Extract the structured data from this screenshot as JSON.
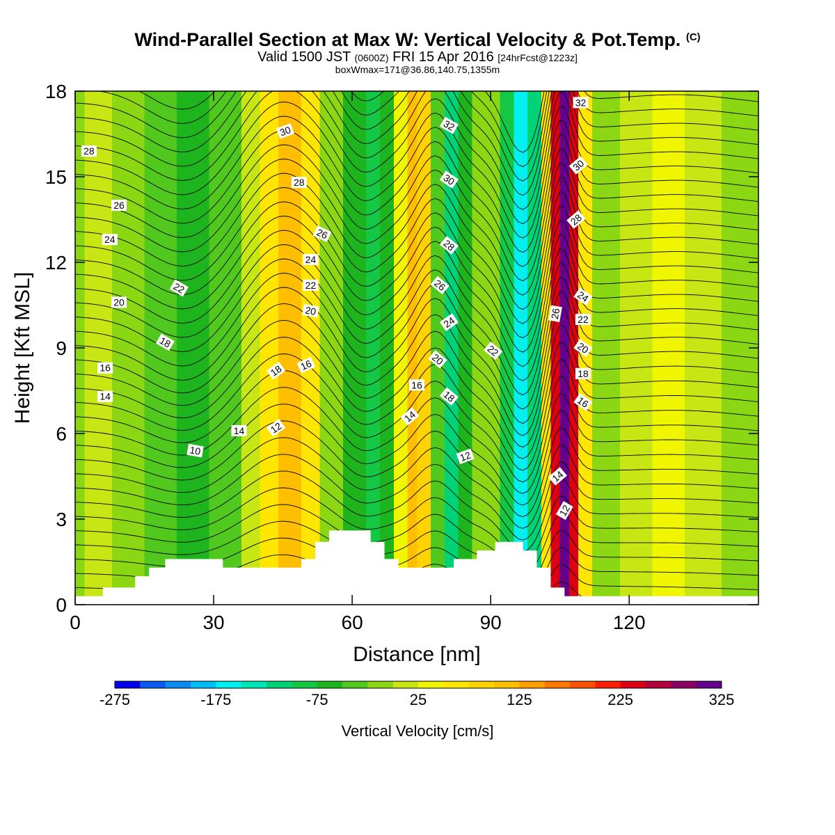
{
  "header": {
    "title": "Wind-Parallel Section at Max W: Vertical Velocity & Pot.Temp.",
    "title_mark": "(C)",
    "subtitle_a": "Valid 1500 JST",
    "subtitle_b": "(0600Z)",
    "subtitle_c": "FRI 15 Apr 2016",
    "subtitle_d": "[24hrFcst@1223z]",
    "subtitle2": "boxWmax=171@36.86,140.75,1355m"
  },
  "chart_data": {
    "type": "heatmap",
    "xlabel": "Distance [nm]",
    "ylabel": "Height [Kft MSL]",
    "xlim": [
      0,
      148
    ],
    "ylim": [
      0,
      18
    ],
    "x_ticks": [
      "0",
      "30",
      "60",
      "90",
      "120"
    ],
    "y_ticks": [
      "0",
      "3",
      "6",
      "9",
      "12",
      "15",
      "18"
    ],
    "colorbar": {
      "label": "Vertical Velocity [cm/s]",
      "tick_labels": [
        "-275",
        "-175",
        "-75",
        "25",
        "125",
        "225",
        "325"
      ],
      "min": -275,
      "max": 325,
      "step": 25,
      "colors": [
        "#0000ee",
        "#0a5af5",
        "#0a8cf5",
        "#00bef5",
        "#00f0f0",
        "#00e6b4",
        "#00d278",
        "#14c846",
        "#1eb41e",
        "#50c81e",
        "#8cd714",
        "#c8e614",
        "#f0f500",
        "#ffe600",
        "#ffd200",
        "#ffbe00",
        "#ffa000",
        "#ff7800",
        "#ff5000",
        "#ff1e00",
        "#dc0014",
        "#b4003c",
        "#8c0064",
        "#64008c"
      ]
    },
    "velocity_bands": [
      {
        "x": 0,
        "w": -20
      },
      {
        "x": 2,
        "w": 10
      },
      {
        "x": 8,
        "w": -20
      },
      {
        "x": 15,
        "w": -40
      },
      {
        "x": 22,
        "w": -70
      },
      {
        "x": 29,
        "w": -40
      },
      {
        "x": 36,
        "w": 20
      },
      {
        "x": 40,
        "w": 70
      },
      {
        "x": 44,
        "w": 110
      },
      {
        "x": 49,
        "w": 60
      },
      {
        "x": 53,
        "w": -20
      },
      {
        "x": 58,
        "w": -60
      },
      {
        "x": 63,
        "w": -100
      },
      {
        "x": 66,
        "w": -60
      },
      {
        "x": 69,
        "w": 40
      },
      {
        "x": 72,
        "w": 120
      },
      {
        "x": 74,
        "w": 90
      },
      {
        "x": 77,
        "w": -40
      },
      {
        "x": 80,
        "w": -120
      },
      {
        "x": 83,
        "w": -70
      },
      {
        "x": 86,
        "w": -20
      },
      {
        "x": 89,
        "w": -10
      },
      {
        "x": 92,
        "w": -80
      },
      {
        "x": 95,
        "w": -175
      },
      {
        "x": 98,
        "w": -110
      },
      {
        "x": 101,
        "w": 60
      },
      {
        "x": 103,
        "w": 230
      },
      {
        "x": 105,
        "w": 305
      },
      {
        "x": 107,
        "w": 225
      },
      {
        "x": 109,
        "w": 60
      },
      {
        "x": 112,
        "w": -10
      },
      {
        "x": 118,
        "w": 0
      },
      {
        "x": 125,
        "w": 25
      },
      {
        "x": 132,
        "w": 10
      },
      {
        "x": 140,
        "w": -20
      },
      {
        "x": 148,
        "w": -25
      }
    ],
    "terrain": [
      {
        "x": 0,
        "h": 0.3
      },
      {
        "x": 6,
        "h": 0.3
      },
      {
        "x": 6,
        "h": 0.6
      },
      {
        "x": 13,
        "h": 0.6
      },
      {
        "x": 13,
        "h": 1.0
      },
      {
        "x": 16,
        "h": 1.0
      },
      {
        "x": 16,
        "h": 1.3
      },
      {
        "x": 19.5,
        "h": 1.3
      },
      {
        "x": 19.5,
        "h": 1.6
      },
      {
        "x": 32,
        "h": 1.6
      },
      {
        "x": 32,
        "h": 1.3
      },
      {
        "x": 49,
        "h": 1.3
      },
      {
        "x": 49,
        "h": 1.6
      },
      {
        "x": 52,
        "h": 1.6
      },
      {
        "x": 52,
        "h": 2.2
      },
      {
        "x": 55,
        "h": 2.2
      },
      {
        "x": 55,
        "h": 2.6
      },
      {
        "x": 64,
        "h": 2.6
      },
      {
        "x": 64,
        "h": 2.2
      },
      {
        "x": 67,
        "h": 2.2
      },
      {
        "x": 67,
        "h": 1.6
      },
      {
        "x": 70,
        "h": 1.6
      },
      {
        "x": 70,
        "h": 1.3
      },
      {
        "x": 82,
        "h": 1.3
      },
      {
        "x": 82,
        "h": 1.6
      },
      {
        "x": 87,
        "h": 1.6
      },
      {
        "x": 87,
        "h": 1.9
      },
      {
        "x": 91,
        "h": 1.9
      },
      {
        "x": 91,
        "h": 2.2
      },
      {
        "x": 97,
        "h": 2.2
      },
      {
        "x": 97,
        "h": 1.9
      },
      {
        "x": 100,
        "h": 1.9
      },
      {
        "x": 100,
        "h": 1.3
      },
      {
        "x": 103,
        "h": 1.3
      },
      {
        "x": 103,
        "h": 0.6
      },
      {
        "x": 106,
        "h": 0.6
      },
      {
        "x": 106,
        "h": 0.3
      },
      {
        "x": 148,
        "h": 0.3
      }
    ],
    "isentropes": {
      "label": "Pot.Temp. (C)",
      "interval": 0.5,
      "contour_labels": [
        {
          "v": "28",
          "x": 3,
          "y": 15.9,
          "a": 0
        },
        {
          "v": "26",
          "x": 9.5,
          "y": 14.0,
          "a": 0
        },
        {
          "v": "24",
          "x": 7.5,
          "y": 12.8,
          "a": 0
        },
        {
          "v": "20",
          "x": 9.5,
          "y": 10.6,
          "a": 0
        },
        {
          "v": "22",
          "x": 22.5,
          "y": 11.1,
          "a": 30
        },
        {
          "v": "18",
          "x": 19.5,
          "y": 9.2,
          "a": 30
        },
        {
          "v": "16",
          "x": 6.5,
          "y": 8.3,
          "a": 0
        },
        {
          "v": "14",
          "x": 6.5,
          "y": 7.3,
          "a": 0
        },
        {
          "v": "10",
          "x": 26,
          "y": 5.4,
          "a": 10
        },
        {
          "v": "14",
          "x": 35.5,
          "y": 6.1,
          "a": 0
        },
        {
          "v": "12",
          "x": 43.5,
          "y": 6.2,
          "a": -35
        },
        {
          "v": "18",
          "x": 43.5,
          "y": 8.2,
          "a": -35
        },
        {
          "v": "16",
          "x": 50,
          "y": 8.4,
          "a": -25
        },
        {
          "v": "20",
          "x": 51,
          "y": 10.3,
          "a": 10
        },
        {
          "v": "22",
          "x": 51,
          "y": 11.2,
          "a": 0
        },
        {
          "v": "24",
          "x": 51,
          "y": 12.1,
          "a": 0
        },
        {
          "v": "26",
          "x": 53.5,
          "y": 13.0,
          "a": 25
        },
        {
          "v": "28",
          "x": 48.5,
          "y": 14.8,
          "a": 0
        },
        {
          "v": "30",
          "x": 45.5,
          "y": 16.6,
          "a": -20
        },
        {
          "v": "32",
          "x": 81,
          "y": 16.8,
          "a": 30
        },
        {
          "v": "30",
          "x": 81,
          "y": 14.9,
          "a": 35
        },
        {
          "v": "28",
          "x": 81,
          "y": 12.6,
          "a": 40
        },
        {
          "v": "26",
          "x": 79,
          "y": 11.2,
          "a": 40
        },
        {
          "v": "24",
          "x": 81,
          "y": 9.9,
          "a": -35
        },
        {
          "v": "22",
          "x": 90.5,
          "y": 8.9,
          "a": 40
        },
        {
          "v": "20",
          "x": 78.5,
          "y": 8.6,
          "a": 40
        },
        {
          "v": "18",
          "x": 81,
          "y": 7.3,
          "a": 40
        },
        {
          "v": "16",
          "x": 74,
          "y": 7.7,
          "a": 0
        },
        {
          "v": "14",
          "x": 72.5,
          "y": 6.6,
          "a": -40
        },
        {
          "v": "12",
          "x": 84.5,
          "y": 5.2,
          "a": -20
        },
        {
          "v": "32",
          "x": 109.5,
          "y": 17.6,
          "a": 0
        },
        {
          "v": "30",
          "x": 109,
          "y": 15.4,
          "a": -40
        },
        {
          "v": "28",
          "x": 108.5,
          "y": 13.5,
          "a": -40
        },
        {
          "v": "26",
          "x": 104,
          "y": 10.2,
          "a": -80
        },
        {
          "v": "24",
          "x": 110,
          "y": 10.8,
          "a": 35
        },
        {
          "v": "22",
          "x": 110,
          "y": 10.0,
          "a": 0
        },
        {
          "v": "20",
          "x": 110,
          "y": 9.0,
          "a": 35
        },
        {
          "v": "18",
          "x": 110,
          "y": 8.1,
          "a": 0
        },
        {
          "v": "16",
          "x": 110,
          "y": 7.1,
          "a": 35
        },
        {
          "v": "14",
          "x": 104.5,
          "y": 4.5,
          "a": -40
        },
        {
          "v": "12",
          "x": 106,
          "y": 3.3,
          "a": -60
        }
      ]
    }
  }
}
